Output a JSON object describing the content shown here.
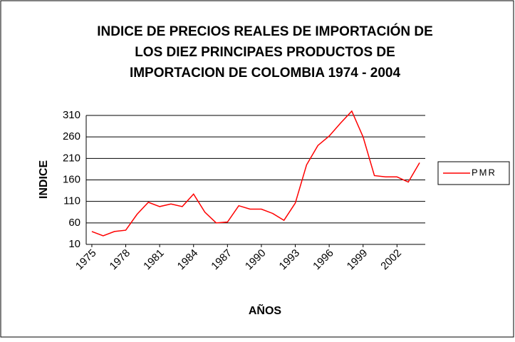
{
  "chart_data": {
    "type": "line",
    "title": [
      "INDICE DE PRECIOS REALES DE IMPORTACIÓN DE",
      "LOS DIEZ PRINCIPAES PRODUCTOS DE",
      "IMPORTACION DE COLOMBIA 1974 - 2004"
    ],
    "x_label": "AÑOS",
    "y_label": "INDICE",
    "categories": [
      "1975",
      null,
      null,
      "1978",
      null,
      null,
      "1981",
      null,
      null,
      "1984",
      null,
      null,
      "1987",
      null,
      null,
      "1990",
      null,
      null,
      "1993",
      null,
      null,
      "1996",
      null,
      null,
      "1999",
      null,
      null,
      "2002",
      null,
      null
    ],
    "series": [
      {
        "name": "PMR",
        "color": "#ff0000",
        "values": [
          40,
          30,
          40,
          43,
          80,
          108,
          98,
          104,
          98,
          127,
          85,
          60,
          62,
          100,
          92,
          92,
          82,
          66,
          106,
          195,
          240,
          262,
          292,
          320,
          260,
          170,
          167,
          167,
          155,
          200
        ]
      }
    ],
    "ylim": [
      10,
      310
    ],
    "yticks": [
      10,
      60,
      110,
      160,
      210,
      260,
      310
    ],
    "grid": true,
    "legend": "right"
  }
}
